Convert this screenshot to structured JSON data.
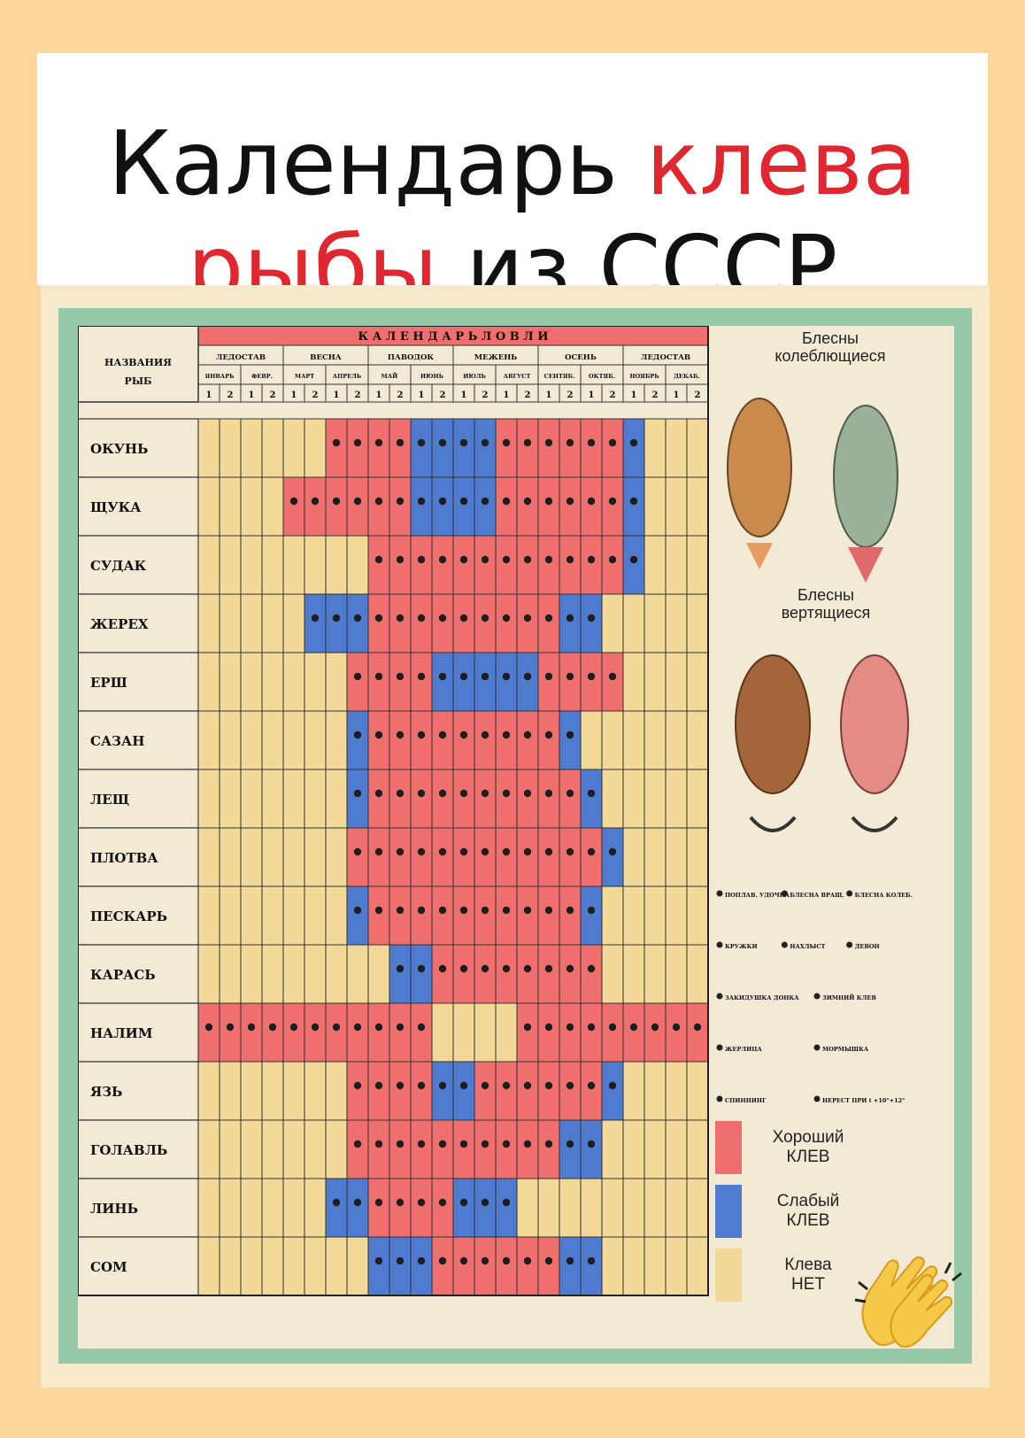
{
  "title": {
    "line1_black": "Календарь ",
    "line1_red": "клева",
    "line2_red": "рыбы",
    "line2_black": " из СССР"
  },
  "chart": {
    "main_header": "КАЛЕНДАРЬ ЛОВЛИ",
    "fish_header": [
      "НАЗВАНИЯ",
      "РЫБ"
    ],
    "seasons": [
      {
        "label": "ЛЕДОСТАВ",
        "span": 4
      },
      {
        "label": "ВЕСНА",
        "span": 4
      },
      {
        "label": "ПАВОДОК",
        "span": 4
      },
      {
        "label": "МЕЖЕНЬ",
        "span": 4
      },
      {
        "label": "ОСЕНЬ",
        "span": 4
      },
      {
        "label": "ЛЕДОСТАВ",
        "span": 4
      }
    ],
    "months": [
      "ЯНВАРЬ",
      "ФЕВР.",
      "МАРТ",
      "АПРЕЛЬ",
      "МАЙ",
      "ИЮНЬ",
      "ИЮЛЬ",
      "АВГУСТ",
      "СЕНТЯБ.",
      "ОКТЯБ.",
      "НОЯБРЬ",
      "ДЕКАБ."
    ],
    "halves": [
      "1",
      "2",
      "1",
      "2",
      "1",
      "2",
      "1",
      "2",
      "1",
      "2",
      "1",
      "2",
      "1",
      "2",
      "1",
      "2",
      "1",
      "2",
      "1",
      "2",
      "1",
      "2",
      "1",
      "2"
    ],
    "fish": [
      {
        "name": "ОКУНЬ",
        "cells": "YYYYYYRRRRBBBBRRRRRRBYYY"
      },
      {
        "name": "ЩУКА",
        "cells": "YYYYRRRRRRBBBBRRRRRRBYYY"
      },
      {
        "name": "СУДАК",
        "cells": "YYYYYYYYRRRRRRRRRRRRBYYY"
      },
      {
        "name": "ЖЕРЕХ",
        "cells": "YYYYYBBBRRRRRRRRRBBYYYYY"
      },
      {
        "name": "ЕРШ",
        "cells": "YYYYYYYRRRRBBBBBRRRRYYYY"
      },
      {
        "name": "САЗАН",
        "cells": "YYYYYYYBRRRRRRRRRBYYYYYY"
      },
      {
        "name": "ЛЕЩ",
        "cells": "YYYYYYYBRRRRRRRRRRBYYYYY"
      },
      {
        "name": "ПЛОТВА",
        "cells": "YYYYYYYRRRRRRRRRRRRBYYYY"
      },
      {
        "name": "ПЕСКАРЬ",
        "cells": "YYYYYYYBRRRRRRRRRRBYYYYY"
      },
      {
        "name": "КАРАСЬ",
        "cells": "YYYYYYYYYBBRRRRRRRRYYYYY"
      },
      {
        "name": "НАЛИМ",
        "cells": "RRRRRRRRRRRYYYYRRRRRRRRR"
      },
      {
        "name": "ЯЗЬ",
        "cells": "YYYYYYYRRRRBBRRRRRRBYYYY"
      },
      {
        "name": "ГОЛАВЛЬ",
        "cells": "YYYYYYYRRRRRRRRRRBBYYYYY"
      },
      {
        "name": "ЛИНЬ",
        "cells": "YYYYYYBBRRRRBBBYYYYYYYYY"
      },
      {
        "name": "СОМ",
        "cells": "YYYYYYYYBBBRRRRRRBBYYYYY"
      }
    ],
    "colors": {
      "R": "#ef6f6f",
      "B": "#4f7bd1",
      "Y": "#f3d998"
    },
    "lure_titles": {
      "oscillating": "Блесны колеблющиеся",
      "rotating": "Блесны вертящиеся"
    },
    "legend_symbols": [
      [
        "ПОПЛАВ. УДОЧКА",
        "БЛЕСНА ВРАЩ.",
        "БЛЕСНА КОЛЕБ."
      ],
      [
        "КРУЖКИ",
        "НАХЛЫСТ",
        "ДЕВОН"
      ],
      [
        "ЗАКИДУШКА ДОНКА",
        "ЗИМНИЙ КЛЕВ"
      ],
      [
        "ЖЕРЛИЦА",
        "МОРМЫШКА"
      ],
      [
        "СПИННИНГ",
        "НЕРЕСТ ПРИ t +10°+12°"
      ]
    ],
    "legend_colors": [
      {
        "label": "Хороший КЛЕВ",
        "color": "#ef6f6f"
      },
      {
        "label": "Слабый КЛЕВ",
        "color": "#4f7bd1"
      },
      {
        "label": "Клева НЕТ",
        "color": "#f3d998"
      }
    ]
  }
}
